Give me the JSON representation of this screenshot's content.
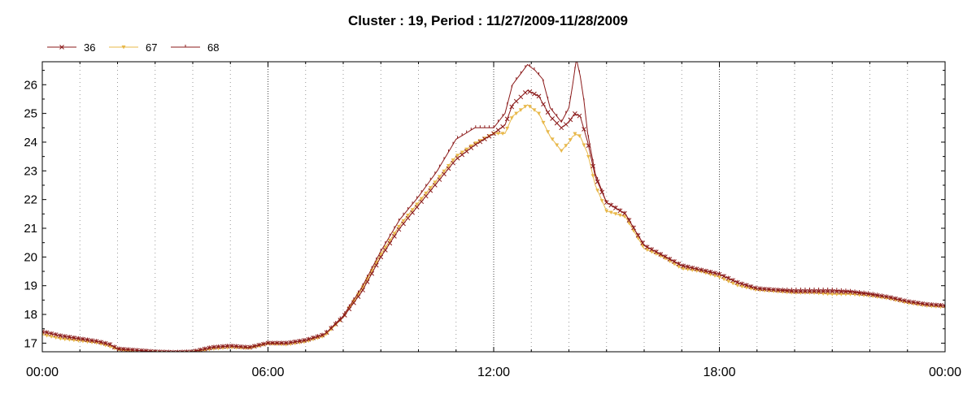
{
  "chart_data": {
    "type": "line",
    "title": "Cluster : 19, Period : 11/27/2009-11/28/2009",
    "xlabel": "",
    "ylabel": "",
    "x_range_hours": [
      0,
      24
    ],
    "x_tick_labels": [
      "00:00",
      "06:00",
      "12:00",
      "18:00",
      "00:00"
    ],
    "x_major_ticks_hours": [
      0,
      6,
      12,
      18,
      24
    ],
    "ylim": [
      16.7,
      26.8
    ],
    "y_ticks": [
      17,
      18,
      19,
      20,
      21,
      22,
      23,
      24,
      25,
      26
    ],
    "grid": "dotted-vertical",
    "legend_position": "top-left",
    "series": [
      {
        "name": "36",
        "color": "#8b1a1a",
        "marker": "x",
        "points": [
          [
            0,
            17.4
          ],
          [
            0.5,
            17.25
          ],
          [
            1,
            17.15
          ],
          [
            1.5,
            17.05
          ],
          [
            1.8,
            16.95
          ],
          [
            2,
            16.8
          ],
          [
            2.5,
            16.75
          ],
          [
            3,
            16.7
          ],
          [
            3.5,
            16.68
          ],
          [
            4,
            16.7
          ],
          [
            4.5,
            16.85
          ],
          [
            5,
            16.9
          ],
          [
            5.5,
            16.85
          ],
          [
            6,
            17.0
          ],
          [
            6.5,
            17.0
          ],
          [
            7,
            17.1
          ],
          [
            7.5,
            17.3
          ],
          [
            8,
            17.9
          ],
          [
            8.5,
            18.8
          ],
          [
            9,
            20.0
          ],
          [
            9.5,
            21.0
          ],
          [
            10,
            21.8
          ],
          [
            10.5,
            22.6
          ],
          [
            11,
            23.4
          ],
          [
            11.5,
            23.9
          ],
          [
            12,
            24.3
          ],
          [
            12.3,
            24.6
          ],
          [
            12.5,
            25.3
          ],
          [
            12.9,
            25.8
          ],
          [
            13.2,
            25.6
          ],
          [
            13.5,
            24.9
          ],
          [
            13.8,
            24.5
          ],
          [
            14.0,
            24.7
          ],
          [
            14.15,
            25.0
          ],
          [
            14.3,
            24.9
          ],
          [
            14.5,
            24.0
          ],
          [
            14.7,
            22.8
          ],
          [
            15,
            21.9
          ],
          [
            15.5,
            21.5
          ],
          [
            16,
            20.4
          ],
          [
            16.5,
            20.05
          ],
          [
            17,
            19.7
          ],
          [
            17.5,
            19.55
          ],
          [
            18,
            19.4
          ],
          [
            18.5,
            19.1
          ],
          [
            19,
            18.9
          ],
          [
            19.5,
            18.85
          ],
          [
            20,
            18.8
          ],
          [
            20.5,
            18.8
          ],
          [
            21,
            18.8
          ],
          [
            21.5,
            18.78
          ],
          [
            22,
            18.7
          ],
          [
            22.5,
            18.6
          ],
          [
            23,
            18.45
          ],
          [
            23.5,
            18.35
          ],
          [
            24,
            18.3
          ]
        ]
      },
      {
        "name": "67",
        "color": "#e8b84a",
        "marker": "triangle-down",
        "points": [
          [
            0,
            17.3
          ],
          [
            0.5,
            17.15
          ],
          [
            1,
            17.08
          ],
          [
            1.5,
            17.0
          ],
          [
            1.8,
            16.88
          ],
          [
            2,
            16.78
          ],
          [
            2.5,
            16.7
          ],
          [
            3,
            16.68
          ],
          [
            3.5,
            16.66
          ],
          [
            4,
            16.68
          ],
          [
            4.5,
            16.8
          ],
          [
            5,
            16.85
          ],
          [
            5.5,
            16.82
          ],
          [
            6,
            16.98
          ],
          [
            6.5,
            16.95
          ],
          [
            7,
            17.05
          ],
          [
            7.5,
            17.25
          ],
          [
            8,
            17.9
          ],
          [
            8.5,
            18.9
          ],
          [
            9,
            20.1
          ],
          [
            9.5,
            21.1
          ],
          [
            10,
            21.9
          ],
          [
            10.5,
            22.7
          ],
          [
            11,
            23.5
          ],
          [
            11.5,
            23.95
          ],
          [
            12,
            24.3
          ],
          [
            12.3,
            24.3
          ],
          [
            12.5,
            24.9
          ],
          [
            12.9,
            25.3
          ],
          [
            13.2,
            25.0
          ],
          [
            13.5,
            24.2
          ],
          [
            13.8,
            23.7
          ],
          [
            14.0,
            24.0
          ],
          [
            14.15,
            24.3
          ],
          [
            14.3,
            24.2
          ],
          [
            14.5,
            23.6
          ],
          [
            14.7,
            22.5
          ],
          [
            15,
            21.6
          ],
          [
            15.5,
            21.4
          ],
          [
            16,
            20.3
          ],
          [
            16.5,
            20.0
          ],
          [
            17,
            19.6
          ],
          [
            17.5,
            19.5
          ],
          [
            18,
            19.3
          ],
          [
            18.5,
            19.0
          ],
          [
            19,
            18.85
          ],
          [
            19.5,
            18.8
          ],
          [
            20,
            18.75
          ],
          [
            20.5,
            18.75
          ],
          [
            21,
            18.7
          ],
          [
            21.5,
            18.7
          ],
          [
            22,
            18.65
          ],
          [
            22.5,
            18.55
          ],
          [
            23,
            18.4
          ],
          [
            23.5,
            18.3
          ],
          [
            24,
            18.25
          ]
        ]
      },
      {
        "name": "68",
        "color": "#8b1a1a",
        "marker": "tick",
        "points": [
          [
            0,
            17.4
          ],
          [
            0.5,
            17.25
          ],
          [
            1,
            17.15
          ],
          [
            1.5,
            17.05
          ],
          [
            1.8,
            16.95
          ],
          [
            2,
            16.8
          ],
          [
            2.5,
            16.75
          ],
          [
            3,
            16.7
          ],
          [
            3.5,
            16.68
          ],
          [
            4,
            16.7
          ],
          [
            4.5,
            16.85
          ],
          [
            5,
            16.9
          ],
          [
            5.5,
            16.85
          ],
          [
            6,
            17.0
          ],
          [
            6.5,
            17.0
          ],
          [
            7,
            17.1
          ],
          [
            7.5,
            17.3
          ],
          [
            8,
            17.95
          ],
          [
            8.5,
            18.95
          ],
          [
            9,
            20.2
          ],
          [
            9.5,
            21.3
          ],
          [
            10,
            22.1
          ],
          [
            10.5,
            23.0
          ],
          [
            11,
            24.1
          ],
          [
            11.5,
            24.5
          ],
          [
            12,
            24.5
          ],
          [
            12.3,
            25.0
          ],
          [
            12.5,
            26.0
          ],
          [
            12.9,
            26.7
          ],
          [
            13.1,
            26.5
          ],
          [
            13.3,
            26.2
          ],
          [
            13.5,
            25.2
          ],
          [
            13.8,
            24.7
          ],
          [
            14.0,
            25.2
          ],
          [
            14.1,
            26.0
          ],
          [
            14.2,
            26.9
          ],
          [
            14.35,
            26.0
          ],
          [
            14.5,
            24.3
          ],
          [
            14.7,
            22.9
          ],
          [
            15,
            21.9
          ],
          [
            15.5,
            21.5
          ],
          [
            16,
            20.4
          ],
          [
            16.5,
            20.05
          ],
          [
            17,
            19.7
          ],
          [
            17.5,
            19.55
          ],
          [
            18,
            19.4
          ],
          [
            18.5,
            19.1
          ],
          [
            19,
            18.9
          ],
          [
            19.5,
            18.85
          ],
          [
            20,
            18.85
          ],
          [
            20.5,
            18.85
          ],
          [
            21,
            18.85
          ],
          [
            21.5,
            18.8
          ],
          [
            22,
            18.72
          ],
          [
            22.5,
            18.6
          ],
          [
            23,
            18.45
          ],
          [
            23.5,
            18.35
          ],
          [
            24,
            18.3
          ]
        ]
      }
    ]
  }
}
